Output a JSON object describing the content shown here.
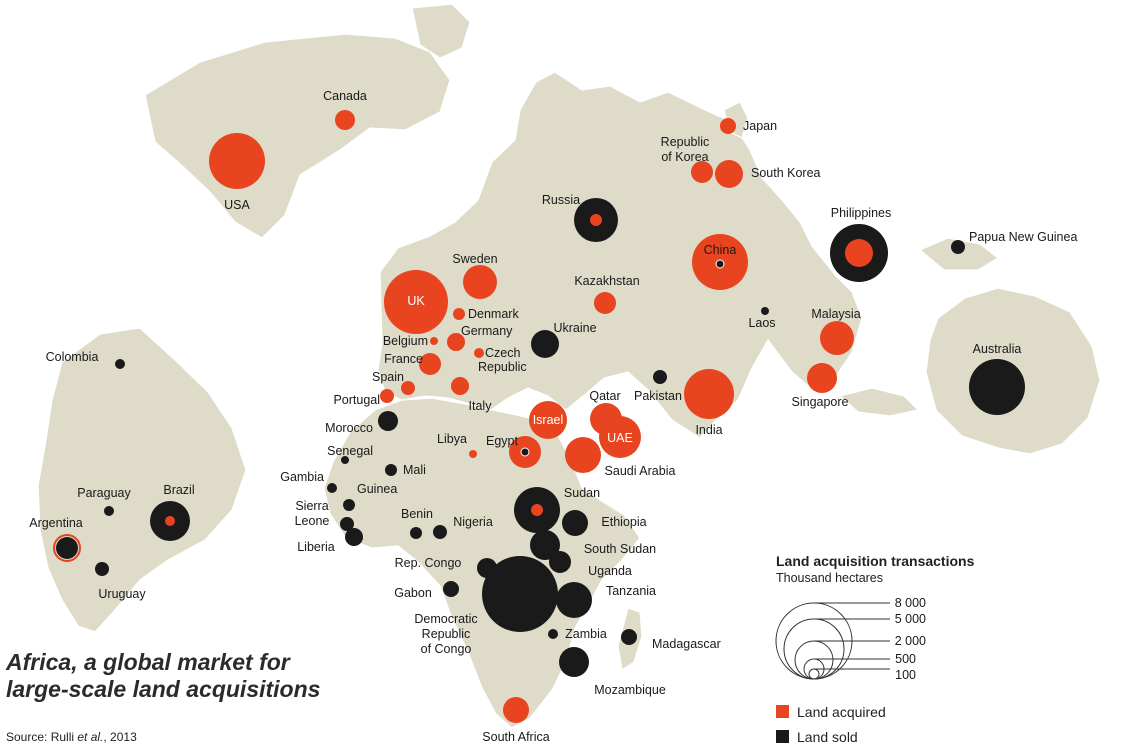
{
  "title": {
    "line1": "Africa, a global market for",
    "line2": "large-scale land acquisitions"
  },
  "source": {
    "prefix": "Source: Rulli ",
    "italic": "et al.",
    "suffix": ", 2013"
  },
  "legend": {
    "title": "Land acquisition transactions",
    "subtitle": "Thousand hectares",
    "scale_values": [
      "8 000",
      "5 000",
      "2 000",
      "500",
      "100"
    ],
    "acquired_label": "Land acquired",
    "sold_label": "Land sold"
  },
  "colors": {
    "acquired": "#e8441f",
    "sold": "#1a1a1a",
    "land": "#dedbc8",
    "border": "#ffffff"
  },
  "map_data": {
    "type": "proportional-symbol-map",
    "countries": [
      {
        "name": "Canada",
        "acquired": "small"
      },
      {
        "name": "USA",
        "acquired": "large"
      },
      {
        "name": "Japan",
        "acquired": "small"
      },
      {
        "name": "Republic of Korea",
        "acquired": "small"
      },
      {
        "name": "South Korea",
        "acquired": "small"
      },
      {
        "name": "Russia",
        "acquired": "small",
        "sold": "large"
      },
      {
        "name": "Philippines",
        "acquired": "medium",
        "sold": "large"
      },
      {
        "name": "Papua New Guinea",
        "sold": "small"
      },
      {
        "name": "Sweden",
        "acquired": "medium"
      },
      {
        "name": "Kazakhstan",
        "acquired": "small"
      },
      {
        "name": "China",
        "acquired": "large",
        "sold": "small"
      },
      {
        "name": "UK",
        "acquired": "large"
      },
      {
        "name": "Denmark",
        "acquired": "small"
      },
      {
        "name": "Germany",
        "acquired": "small"
      },
      {
        "name": "Belgium",
        "acquired": "small"
      },
      {
        "name": "Czech Republic",
        "acquired": "small"
      },
      {
        "name": "France",
        "acquired": "small"
      },
      {
        "name": "Spain",
        "acquired": "small"
      },
      {
        "name": "Portugal",
        "acquired": "small"
      },
      {
        "name": "Italy",
        "acquired": "small"
      },
      {
        "name": "Ukraine",
        "sold": "medium"
      },
      {
        "name": "Laos",
        "sold": "small"
      },
      {
        "name": "Malaysia",
        "acquired": "medium"
      },
      {
        "name": "Singapore",
        "acquired": "medium"
      },
      {
        "name": "Pakistan",
        "sold": "small"
      },
      {
        "name": "India",
        "acquired": "large"
      },
      {
        "name": "Qatar",
        "acquired": "medium"
      },
      {
        "name": "UAE",
        "acquired": "large"
      },
      {
        "name": "Israel",
        "acquired": "medium"
      },
      {
        "name": "Libya",
        "acquired": "small"
      },
      {
        "name": "Egypt",
        "acquired": "medium",
        "sold": "small"
      },
      {
        "name": "Saudi Arabia",
        "acquired": "medium"
      },
      {
        "name": "Australia",
        "sold": "large"
      },
      {
        "name": "Colombia",
        "sold": "small"
      },
      {
        "name": "Morocco",
        "sold": "small"
      },
      {
        "name": "Senegal",
        "sold": "small"
      },
      {
        "name": "Gambia",
        "sold": "small"
      },
      {
        "name": "Mali",
        "sold": "small"
      },
      {
        "name": "Guinea",
        "sold": "small"
      },
      {
        "name": "Sierra Leone",
        "sold": "small"
      },
      {
        "name": "Liberia",
        "sold": "small"
      },
      {
        "name": "Benin",
        "sold": "small"
      },
      {
        "name": "Nigeria",
        "sold": "small"
      },
      {
        "name": "Sudan",
        "acquired": "small",
        "sold": "large"
      },
      {
        "name": "Ethiopia",
        "sold": "medium"
      },
      {
        "name": "South Sudan",
        "sold": "medium"
      },
      {
        "name": "Uganda",
        "sold": "small"
      },
      {
        "name": "Rep. Congo",
        "sold": "small"
      },
      {
        "name": "Gabon",
        "sold": "small"
      },
      {
        "name": "Democratic Republic of Congo",
        "sold": "very large"
      },
      {
        "name": "Tanzania",
        "sold": "medium"
      },
      {
        "name": "Zambia",
        "sold": "small"
      },
      {
        "name": "Madagascar",
        "sold": "small"
      },
      {
        "name": "Mozambique",
        "sold": "medium"
      },
      {
        "name": "South Africa",
        "acquired": "small"
      },
      {
        "name": "Paraguay",
        "sold": "small"
      },
      {
        "name": "Brazil",
        "acquired": "small",
        "sold": "medium"
      },
      {
        "name": "Argentina",
        "acquired": "small",
        "sold": "small"
      },
      {
        "name": "Uruguay",
        "sold": "small"
      }
    ]
  }
}
